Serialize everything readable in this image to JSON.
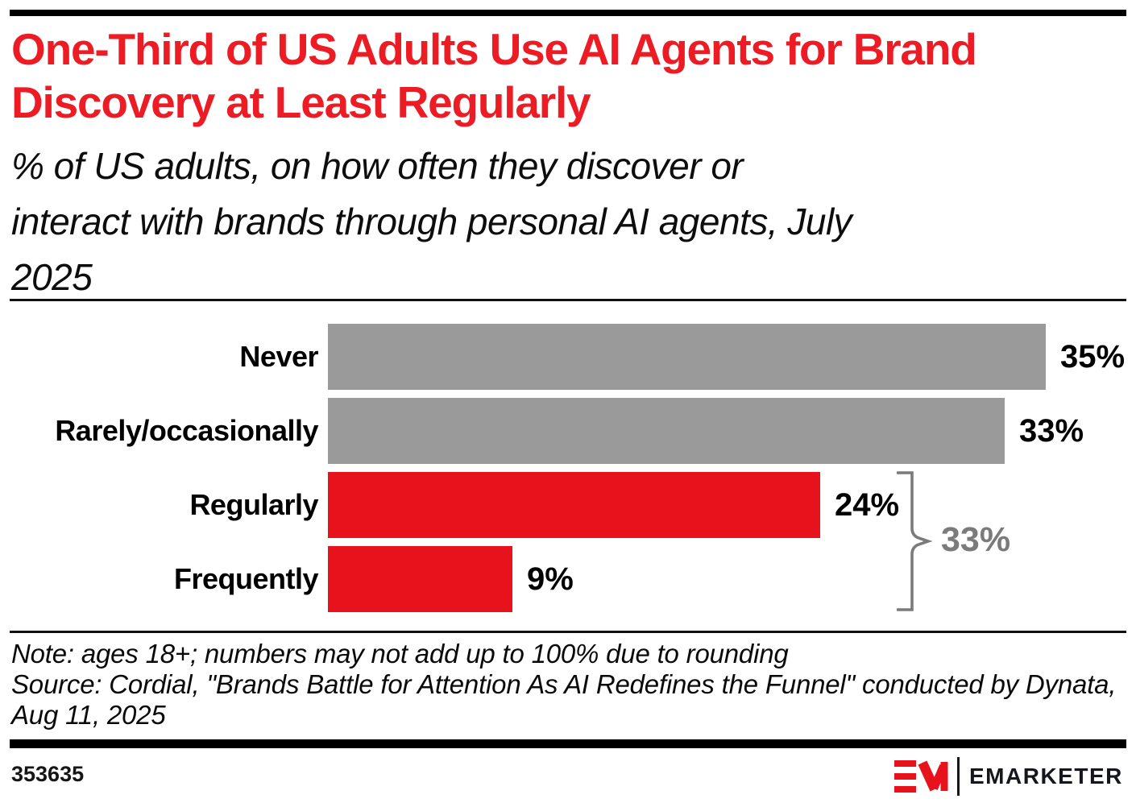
{
  "colors": {
    "title_red": "#ed1b24",
    "bar_red": "#e8121c",
    "bar_gray": "#9a9a9a",
    "brace_gray": "#7b7b7b",
    "brand_red": "#e8121c"
  },
  "header": {
    "title_lines": [
      "One-Third of US Adults Use AI Agents for Brand",
      "Discovery at Least Regularly"
    ],
    "subtitle_lines": [
      "% of US adults, on how often they discover or",
      "interact with brands through personal AI agents, July",
      "2025"
    ]
  },
  "chart_data": {
    "type": "bar",
    "orientation": "horizontal",
    "title": "One-Third of US Adults Use AI Agents for Brand Discovery at Least Regularly",
    "subtitle": "% of US adults, on how often they discover or interact with brands through personal AI agents, July 2025",
    "categories": [
      "Never",
      "Rarely/occasionally",
      "Regularly",
      "Frequently"
    ],
    "values": [
      35,
      33,
      24,
      9
    ],
    "value_labels": [
      "35%",
      "33%",
      "24%",
      "9%"
    ],
    "series_colors": [
      "#9a9a9a",
      "#9a9a9a",
      "#e8121c",
      "#e8121c"
    ],
    "xlim": [
      0,
      35
    ],
    "grid": false,
    "legend": "none",
    "bracket_annotation": {
      "label": "33%",
      "covers": [
        "Regularly",
        "Frequently"
      ],
      "color": "#7b7b7b"
    }
  },
  "notes": {
    "note": "Note: ages 18+; numbers may not add up to 100% due to rounding",
    "source": "Source: Cordial, \"Brands Battle for Attention As AI Redefines the Funnel\" conducted by Dynata, Aug 11, 2025"
  },
  "footer": {
    "chart_id": "353635",
    "brand_name": "EMARKETER"
  }
}
